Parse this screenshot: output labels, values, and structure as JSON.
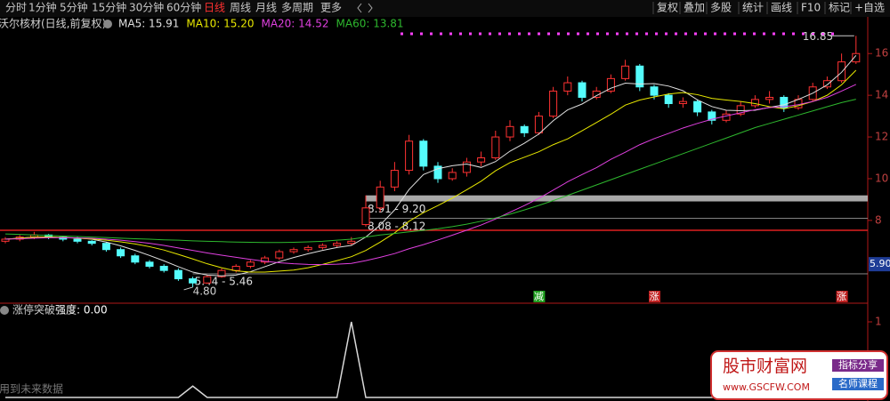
{
  "toolbar": {
    "tabs": [
      "分时",
      "1分钟",
      "5分钟",
      "15分钟",
      "30分钟",
      "60分钟",
      "日线",
      "周线",
      "月线",
      "多周期",
      "更多"
    ],
    "active": 6,
    "buttons": [
      "复权",
      "叠加",
      "多股",
      "统计",
      "画线",
      "F10",
      "标记",
      "+自选"
    ]
  },
  "chart_data": [
    {
      "type": "candlestick",
      "title": "沃尔核材(日线,前复权)",
      "up_color": "#ff3232",
      "down_color": "#54fcfc",
      "candles": [
        [
          7.0,
          7.2,
          6.9,
          7.1
        ],
        [
          7.1,
          7.3,
          7.0,
          7.2
        ],
        [
          7.2,
          7.45,
          7.1,
          7.3
        ],
        [
          7.3,
          7.35,
          7.1,
          7.2
        ],
        [
          7.2,
          7.25,
          7.0,
          7.1
        ],
        [
          7.1,
          7.2,
          6.9,
          7.0
        ],
        [
          7.0,
          7.05,
          6.8,
          6.9
        ],
        [
          6.9,
          6.95,
          6.5,
          6.6
        ],
        [
          6.6,
          6.7,
          6.2,
          6.3
        ],
        [
          6.3,
          6.4,
          5.9,
          6.0
        ],
        [
          6.0,
          6.1,
          5.7,
          5.8
        ],
        [
          5.8,
          5.9,
          5.5,
          5.6
        ],
        [
          5.6,
          5.7,
          5.1,
          5.2
        ],
        [
          5.2,
          5.3,
          4.8,
          5.0
        ],
        [
          5.0,
          5.4,
          4.95,
          5.3
        ],
        [
          5.3,
          5.7,
          5.25,
          5.6
        ],
        [
          5.6,
          5.9,
          5.5,
          5.8
        ],
        [
          5.8,
          6.1,
          5.7,
          6.0
        ],
        [
          6.0,
          6.3,
          5.9,
          6.2
        ],
        [
          6.2,
          6.6,
          6.1,
          6.5
        ],
        [
          6.5,
          6.7,
          6.4,
          6.6
        ],
        [
          6.6,
          6.8,
          6.5,
          6.7
        ],
        [
          6.7,
          6.9,
          6.6,
          6.8
        ],
        [
          6.8,
          7.0,
          6.7,
          6.9
        ],
        [
          6.9,
          7.2,
          6.8,
          7.0
        ],
        [
          7.8,
          9.2,
          7.7,
          8.6
        ],
        [
          8.6,
          9.9,
          8.4,
          9.6
        ],
        [
          9.6,
          10.8,
          9.4,
          10.4
        ],
        [
          10.4,
          12.1,
          10.2,
          11.8
        ],
        [
          11.8,
          11.9,
          10.4,
          10.6
        ],
        [
          10.6,
          10.8,
          9.8,
          10.0
        ],
        [
          10.0,
          10.5,
          9.9,
          10.3
        ],
        [
          10.3,
          11.0,
          10.1,
          10.8
        ],
        [
          10.8,
          11.3,
          10.6,
          11.0
        ],
        [
          11.0,
          12.3,
          10.9,
          12.0
        ],
        [
          12.0,
          12.8,
          11.8,
          12.5
        ],
        [
          12.5,
          12.6,
          12.0,
          12.2
        ],
        [
          12.2,
          13.2,
          12.1,
          13.0
        ],
        [
          13.0,
          14.4,
          12.9,
          14.2
        ],
        [
          14.2,
          14.9,
          14.0,
          14.6
        ],
        [
          14.6,
          14.7,
          13.7,
          13.9
        ],
        [
          13.9,
          14.4,
          13.8,
          14.2
        ],
        [
          14.2,
          15.0,
          14.1,
          14.8
        ],
        [
          14.8,
          15.7,
          14.7,
          15.4
        ],
        [
          15.4,
          15.5,
          14.2,
          14.4
        ],
        [
          14.4,
          14.5,
          13.8,
          14.0
        ],
        [
          14.0,
          14.1,
          13.4,
          13.6
        ],
        [
          13.6,
          13.9,
          13.4,
          13.7
        ],
        [
          13.7,
          13.8,
          13.0,
          13.2
        ],
        [
          13.2,
          13.3,
          12.6,
          12.8
        ],
        [
          12.8,
          13.3,
          12.7,
          13.1
        ],
        [
          13.1,
          13.7,
          13.0,
          13.5
        ],
        [
          13.5,
          14.0,
          13.4,
          13.8
        ],
        [
          13.8,
          14.2,
          13.6,
          13.9
        ],
        [
          13.9,
          14.0,
          13.2,
          13.4
        ],
        [
          13.4,
          14.0,
          13.3,
          13.8
        ],
        [
          13.8,
          14.6,
          13.7,
          14.4
        ],
        [
          14.4,
          14.9,
          14.3,
          14.7
        ],
        [
          14.7,
          16.0,
          14.6,
          15.6
        ],
        [
          15.6,
          16.85,
          15.5,
          16.0
        ]
      ],
      "series": [
        {
          "name": "MA5: 15.91",
          "color": "#e0e0e0",
          "values": [
            7.1,
            7.15,
            7.2,
            7.2,
            7.18,
            7.16,
            7.1,
            6.96,
            6.78,
            6.56,
            6.32,
            6.06,
            5.78,
            5.52,
            5.38,
            5.34,
            5.38,
            5.54,
            5.78,
            6.02,
            6.22,
            6.4,
            6.56,
            6.7,
            6.8,
            7.2,
            7.78,
            8.5,
            9.48,
            10.2,
            10.48,
            10.62,
            10.7,
            10.54,
            10.82,
            11.32,
            11.7,
            12.14,
            12.78,
            13.3,
            13.58,
            13.98,
            14.34,
            14.58,
            14.54,
            14.56,
            14.44,
            14.22,
            13.78,
            13.46,
            13.28,
            13.26,
            13.28,
            13.42,
            13.54,
            13.8,
            14.1,
            14.5,
            15.1,
            15.91
          ]
        },
        {
          "name": "MA10: 15.20",
          "color": "#e8e800",
          "values": [
            7.1,
            7.15,
            7.2,
            7.2,
            7.18,
            7.15,
            7.11,
            7.05,
            6.97,
            6.87,
            6.74,
            6.58,
            6.37,
            6.15,
            5.92,
            5.73,
            5.58,
            5.52,
            5.52,
            5.57,
            5.62,
            5.73,
            5.89,
            6.07,
            6.26,
            6.56,
            6.96,
            7.4,
            7.96,
            8.37,
            8.71,
            9.07,
            9.47,
            9.88,
            10.38,
            10.77,
            11.03,
            11.29,
            11.63,
            11.91,
            12.3,
            12.69,
            13.09,
            13.53,
            13.77,
            13.92,
            14.06,
            14.13,
            14.03,
            13.85,
            13.77,
            13.7,
            13.6,
            13.45,
            13.35,
            13.5,
            13.7,
            14.0,
            14.5,
            15.2
          ]
        },
        {
          "name": "MA20: 14.52",
          "color": "#e040e0",
          "values": [
            7.1,
            7.12,
            7.15,
            7.17,
            7.17,
            7.16,
            7.14,
            7.1,
            7.05,
            6.98,
            6.9,
            6.8,
            6.68,
            6.56,
            6.44,
            6.33,
            6.23,
            6.13,
            6.04,
            5.97,
            5.92,
            5.89,
            5.88,
            5.9,
            5.94,
            6.07,
            6.23,
            6.41,
            6.64,
            6.84,
            7.06,
            7.29,
            7.53,
            7.78,
            8.07,
            8.39,
            8.71,
            9.06,
            9.45,
            9.85,
            10.2,
            10.53,
            10.93,
            11.27,
            11.63,
            11.92,
            12.17,
            12.43,
            12.65,
            12.85,
            13.01,
            13.16,
            13.31,
            13.41,
            13.45,
            13.55,
            13.7,
            13.9,
            14.2,
            14.52
          ]
        },
        {
          "name": "MA60: 13.81",
          "color": "#2eb82e",
          "values": [
            7.35,
            7.33,
            7.3,
            7.28,
            7.25,
            7.23,
            7.2,
            7.18,
            7.15,
            7.12,
            7.1,
            7.07,
            7.05,
            7.02,
            7.0,
            6.98,
            6.96,
            6.95,
            6.94,
            6.94,
            6.95,
            6.97,
            7.0,
            7.05,
            7.1,
            7.2,
            7.3,
            7.37,
            7.45,
            7.52,
            7.6,
            7.7,
            7.82,
            7.96,
            8.12,
            8.3,
            8.5,
            8.72,
            8.95,
            9.2,
            9.45,
            9.7,
            9.95,
            10.2,
            10.45,
            10.7,
            10.95,
            11.2,
            11.45,
            11.7,
            11.95,
            12.2,
            12.45,
            12.65,
            12.85,
            13.05,
            13.25,
            13.45,
            13.65,
            13.81
          ]
        }
      ],
      "zones": [
        {
          "values": [
            8.91,
            9.2
          ],
          "label": "8.91 - 9.20"
        },
        {
          "values": [
            8.08,
            8.12
          ],
          "label": "8.08 - 8.12"
        },
        {
          "values": [
            5.44,
            5.46
          ],
          "label": "5.44 - 5.46"
        }
      ],
      "marks": [
        {
          "value": 16.85,
          "label": "16.85"
        },
        {
          "value": 4.8,
          "label": "4.80"
        }
      ],
      "price_tag": {
        "value": 5.9,
        "label": "5.90"
      },
      "signals": [
        {
          "label": "减",
          "color": "#1fa01f"
        },
        {
          "label": "涨",
          "color": "#c02020"
        },
        {
          "label": "涨",
          "color": "#c02020"
        }
      ],
      "ylim": [
        4.03,
        17.8
      ],
      "yticks": [
        8,
        10,
        12,
        14,
        16
      ]
    },
    {
      "type": "line",
      "title": "涨停突破",
      "subtitle": "强度: 0.00",
      "note": "用到未来数据",
      "color": "#d8d8d8",
      "values": [
        0,
        0,
        0,
        0,
        0,
        0,
        0,
        0,
        0,
        0,
        0,
        0,
        0,
        0.15,
        0,
        0,
        0,
        0,
        0,
        0,
        0,
        0,
        0,
        0,
        1,
        0,
        0,
        0,
        0,
        0,
        0,
        0,
        0,
        0,
        0,
        0,
        0,
        0,
        0,
        0,
        0,
        0,
        0,
        0,
        0,
        0,
        0,
        0,
        0,
        0,
        0,
        0,
        0,
        0,
        0,
        0,
        0,
        0,
        0,
        0
      ],
      "ylim": [
        0,
        1
      ],
      "yticks": [
        1
      ]
    }
  ],
  "watermark": {
    "name": "股市财富网",
    "url": "www.GSCFW.COM",
    "tag1": "指标分享",
    "tag2": "名师课程"
  }
}
